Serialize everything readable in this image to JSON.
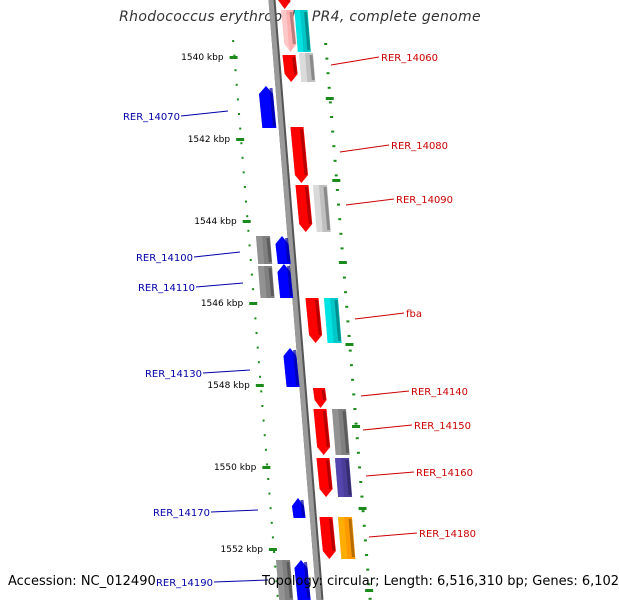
{
  "title": "Rhodococcus erythropolis PR4, complete genome",
  "footer": {
    "accession": "Accession: NC_012490",
    "info": "Topology: circular; Length: 6,516,310 bp; Genes: 6,102"
  },
  "ticks": [
    {
      "label": "1540 kbp",
      "kbp": 1540
    },
    {
      "label": "1542 kbp",
      "kbp": 1542
    },
    {
      "label": "1544 kbp",
      "kbp": 1544
    },
    {
      "label": "1546 kbp",
      "kbp": 1546
    },
    {
      "label": "1548 kbp",
      "kbp": 1548
    },
    {
      "label": "1550 kbp",
      "kbp": 1550
    },
    {
      "label": "1552 kbp",
      "kbp": 1552
    }
  ],
  "gene_labels_left": [
    {
      "name": "RER_14070",
      "color": "#0000aa"
    },
    {
      "name": "RER_14100",
      "color": "#0000aa"
    },
    {
      "name": "RER_14110",
      "color": "#0000aa"
    },
    {
      "name": "RER_14130",
      "color": "#0000aa"
    },
    {
      "name": "RER_14170",
      "color": "#0000aa"
    },
    {
      "name": "RER_14190",
      "color": "#0000aa"
    }
  ],
  "gene_labels_right": [
    {
      "name": "RER_14060",
      "color": "#cc0000"
    },
    {
      "name": "RER_14080",
      "color": "#cc0000"
    },
    {
      "name": "RER_14090",
      "color": "#cc0000"
    },
    {
      "name": "fba",
      "color": "#cc0000"
    },
    {
      "name": "RER_14140",
      "color": "#cc0000"
    },
    {
      "name": "RER_14150",
      "color": "#cc0000"
    },
    {
      "name": "RER_14160",
      "color": "#cc0000"
    },
    {
      "name": "RER_14180",
      "color": "#cc0000"
    }
  ],
  "colors": {
    "plus_strand": "#ff0000",
    "minus_strand": "#0000ff",
    "tick_marks": "#1a8a1a",
    "axis": "#888888",
    "cyan_gene": "#00c8c8",
    "gray_gene": "#808080",
    "orange_gene": "#ff9900",
    "purple_gene": "#4a3d99"
  }
}
